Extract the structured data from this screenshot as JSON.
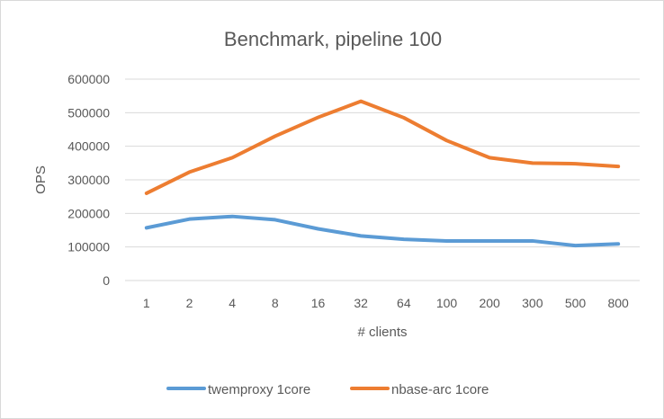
{
  "chart_data": {
    "type": "line",
    "title": "Benchmark, pipeline 100",
    "xlabel": "# clients",
    "ylabel": "OPS",
    "categories": [
      "1",
      "2",
      "4",
      "8",
      "16",
      "32",
      "64",
      "100",
      "200",
      "300",
      "500",
      "800"
    ],
    "ylim": [
      0,
      600000
    ],
    "yticks": [
      "0",
      "100000",
      "200000",
      "300000",
      "400000",
      "500000",
      "600000"
    ],
    "grid": true,
    "legend_position": "bottom",
    "series": [
      {
        "name": "twemproxy 1core",
        "color": "#5b9bd5",
        "values": [
          157000,
          183000,
          191000,
          181000,
          154000,
          133000,
          123000,
          118000,
          118000,
          118000,
          104000,
          109000
        ]
      },
      {
        "name": "nbase-arc 1core",
        "color": "#ed7d31",
        "values": [
          260000,
          323000,
          366000,
          430000,
          486000,
          534000,
          485000,
          417000,
          366000,
          350000,
          348000,
          340000
        ]
      }
    ]
  }
}
